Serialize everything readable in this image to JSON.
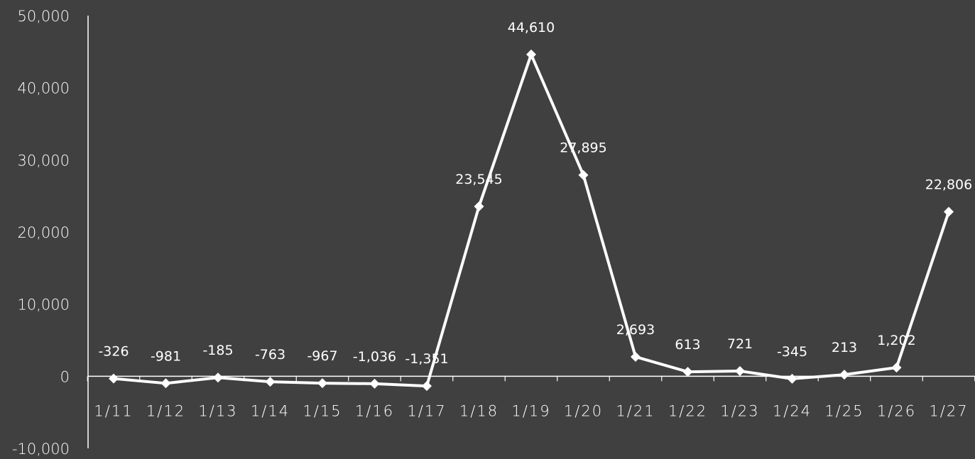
{
  "chart_data": {
    "type": "line",
    "title": "",
    "xlabel": "",
    "ylabel": "",
    "ylim": [
      -10000,
      50000
    ],
    "y_ticks": [
      50000,
      40000,
      30000,
      20000,
      10000,
      0,
      -10000
    ],
    "y_tick_labels": [
      "50,000",
      "40,000",
      "30,000",
      "20,000",
      "10,000",
      "0",
      "-10,000"
    ],
    "categories": [
      "1/11",
      "1/12",
      "1/13",
      "1/14",
      "1/15",
      "1/16",
      "1/17",
      "1/18",
      "1/19",
      "1/20",
      "1/21",
      "1/22",
      "1/23",
      "1/24",
      "1/25",
      "1/26",
      "1/27"
    ],
    "values": [
      -326,
      -981,
      -185,
      -763,
      -967,
      -1036,
      -1351,
      23545,
      44610,
      27895,
      2693,
      613,
      721,
      -345,
      213,
      1202,
      22806
    ],
    "data_labels": [
      "-326",
      "-981",
      "-185",
      "-763",
      "-967",
      "-1,036",
      "-1,351",
      "23,545",
      "44,610",
      "27,895",
      "2,693",
      "613",
      "721",
      "-345",
      "213",
      "1,202",
      "22,806"
    ],
    "grid": false,
    "legend": "none",
    "colors": {
      "background": "#404040",
      "line": "#ffffff",
      "text": "#ffffff"
    }
  }
}
